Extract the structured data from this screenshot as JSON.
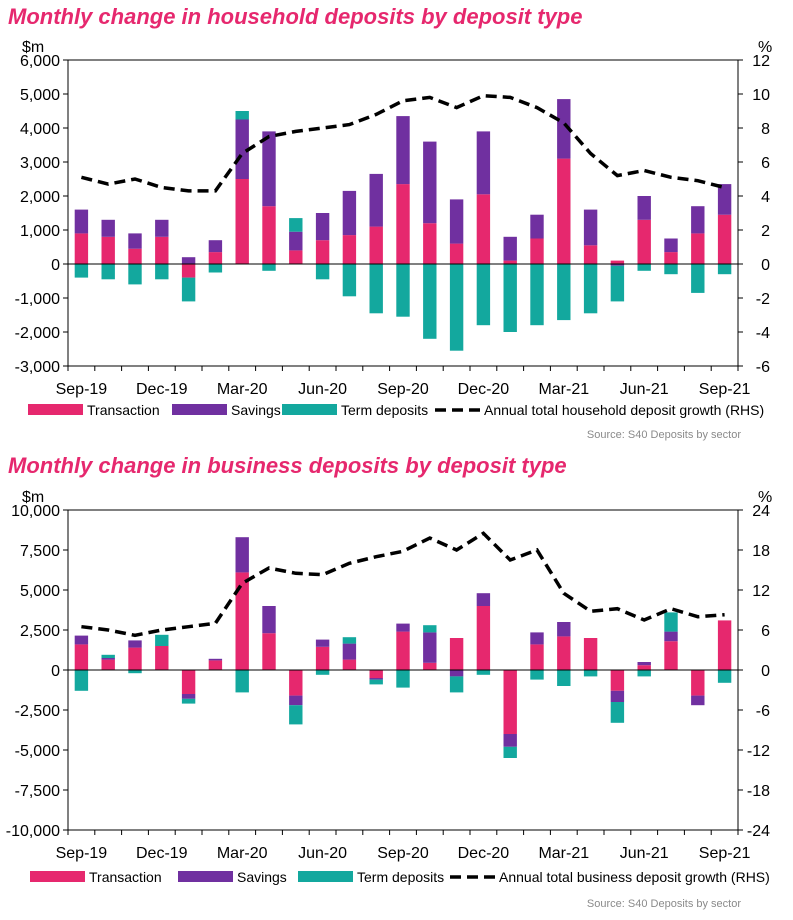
{
  "colors": {
    "transaction": "#e6286e",
    "savings": "#7030a0",
    "term": "#13a89e",
    "line": "#000000",
    "title": "#e6286e"
  },
  "sources": [
    "Source:  S40 Deposits by sector",
    "Source:  S40 Deposits by sector"
  ],
  "chart_data": [
    {
      "type": "bar",
      "stacked": true,
      "title": "Monthly change in household deposits by deposit type",
      "ylabel": "$m",
      "y2label": "%",
      "ylim": [
        -3000,
        6000
      ],
      "yticks": [
        -3000,
        -2000,
        -1000,
        0,
        1000,
        2000,
        3000,
        4000,
        5000,
        6000
      ],
      "ytick_labels": [
        "-3,000",
        "-2,000",
        "-1,000",
        "0",
        "1,000",
        "2,000",
        "3,000",
        "4,000",
        "5,000",
        "6,000"
      ],
      "y2lim": [
        -6,
        12
      ],
      "y2ticks": [
        -6,
        -4,
        -2,
        0,
        2,
        4,
        6,
        8,
        10,
        12
      ],
      "y2tick_labels": [
        "-6",
        "-4",
        "-2",
        "0",
        "2",
        "4",
        "6",
        "8",
        "10",
        "12"
      ],
      "categories": [
        "Sep-19",
        "Oct-19",
        "Nov-19",
        "Dec-19",
        "Jan-20",
        "Feb-20",
        "Mar-20",
        "Apr-20",
        "May-20",
        "Jun-20",
        "Jul-20",
        "Aug-20",
        "Sep-20",
        "Oct-20",
        "Nov-20",
        "Dec-20",
        "Jan-21",
        "Feb-21",
        "Mar-21",
        "Apr-21",
        "May-21",
        "Jun-21",
        "Jul-21",
        "Aug-21",
        "Sep-21"
      ],
      "xtick_labels": [
        "Sep-19",
        "Dec-19",
        "Mar-20",
        "Jun-20",
        "Sep-20",
        "Dec-20",
        "Mar-21",
        "Jun-21",
        "Sep-21"
      ],
      "series": [
        {
          "name": "Transaction",
          "color": "#e6286e",
          "values": [
            900,
            800,
            450,
            800,
            -400,
            350,
            2500,
            1700,
            400,
            700,
            850,
            1100,
            2350,
            1200,
            600,
            2050,
            100,
            750,
            3100,
            550,
            100,
            1300,
            350,
            900,
            1450
          ]
        },
        {
          "name": "Savings",
          "color": "#7030a0",
          "values": [
            700,
            500,
            450,
            500,
            200,
            350,
            1750,
            2200,
            550,
            800,
            1300,
            1550,
            2000,
            2400,
            1300,
            1850,
            700,
            700,
            1750,
            1050,
            -50,
            700,
            400,
            800,
            900
          ]
        },
        {
          "name": "Term deposits",
          "color": "#13a89e",
          "values": [
            -400,
            -450,
            -600,
            -450,
            -700,
            -250,
            250,
            -200,
            400,
            -450,
            -950,
            -1450,
            -1550,
            -2200,
            -2550,
            -1800,
            -2000,
            -1800,
            -1650,
            -1450,
            -1050,
            -200,
            -300,
            -850,
            -300
          ]
        }
      ],
      "line": {
        "name": "Annual total household deposit growth (RHS)",
        "axis": "right",
        "values": [
          5.1,
          4.7,
          5.0,
          4.5,
          4.3,
          4.3,
          6.5,
          7.5,
          7.8,
          8.0,
          8.2,
          8.8,
          9.6,
          9.8,
          9.2,
          9.9,
          9.8,
          9.2,
          8.3,
          6.5,
          5.2,
          5.5,
          5.1,
          4.9,
          4.5
        ]
      },
      "legend": "bottom"
    },
    {
      "type": "bar",
      "stacked": true,
      "title": "Monthly change in business deposits by deposit type",
      "ylabel": "$m",
      "y2label": "%",
      "ylim": [
        -10000,
        10000
      ],
      "yticks": [
        -10000,
        -7500,
        -5000,
        -2500,
        0,
        2500,
        5000,
        7500,
        10000
      ],
      "ytick_labels": [
        "-10,000",
        "-7,500",
        "-5,000",
        "-2,500",
        "0",
        "2,500",
        "5,000",
        "7,500",
        "10,000"
      ],
      "y2lim": [
        -24,
        24
      ],
      "y2ticks": [
        -24,
        -18,
        -12,
        -6,
        0,
        6,
        12,
        18,
        24
      ],
      "y2tick_labels": [
        "-24",
        "-18",
        "-12",
        "-6",
        "0",
        "6",
        "12",
        "18",
        "24"
      ],
      "categories": [
        "Sep-19",
        "Oct-19",
        "Nov-19",
        "Dec-19",
        "Jan-20",
        "Feb-20",
        "Mar-20",
        "Apr-20",
        "May-20",
        "Jun-20",
        "Jul-20",
        "Aug-20",
        "Sep-20",
        "Oct-20",
        "Nov-20",
        "Dec-20",
        "Jan-21",
        "Feb-21",
        "Mar-21",
        "Apr-21",
        "May-21",
        "Jun-21",
        "Jul-21",
        "Aug-21",
        "Sep-21"
      ],
      "xtick_labels": [
        "Sep-19",
        "Dec-19",
        "Mar-20",
        "Jun-20",
        "Sep-20",
        "Dec-20",
        "Mar-21",
        "Jun-21",
        "Sep-21"
      ],
      "series": [
        {
          "name": "Transaction",
          "color": "#e6286e",
          "values": [
            1600,
            650,
            1400,
            1500,
            -1500,
            600,
            6100,
            2300,
            -1600,
            1450,
            650,
            -500,
            2400,
            450,
            2000,
            4000,
            -4000,
            1600,
            2100,
            2000,
            -1300,
            300,
            1800,
            -1600,
            3100
          ]
        },
        {
          "name": "Savings",
          "color": "#7030a0",
          "values": [
            550,
            100,
            450,
            0,
            -300,
            100,
            2200,
            1700,
            -600,
            450,
            1000,
            -100,
            500,
            1900,
            -400,
            800,
            -800,
            750,
            900,
            0,
            -700,
            200,
            600,
            -600,
            0
          ]
        },
        {
          "name": "Term deposits",
          "color": "#13a89e",
          "values": [
            -1300,
            200,
            -200,
            700,
            -300,
            0,
            -1400,
            0,
            -1200,
            -300,
            400,
            -300,
            -1100,
            450,
            -1000,
            -300,
            -700,
            -600,
            -1000,
            -400,
            -1300,
            -400,
            1200,
            0,
            -800
          ]
        }
      ],
      "line": {
        "name": "Annual total business deposit growth (RHS)",
        "axis": "right",
        "values": [
          6.5,
          6.0,
          5.2,
          6.0,
          6.5,
          7.0,
          13.0,
          15.3,
          14.5,
          14.3,
          16.0,
          17.0,
          17.8,
          19.8,
          18.0,
          20.5,
          16.5,
          18.0,
          11.5,
          8.8,
          9.2,
          7.5,
          9.2,
          8.0,
          8.3
        ]
      },
      "legend": "bottom"
    }
  ]
}
